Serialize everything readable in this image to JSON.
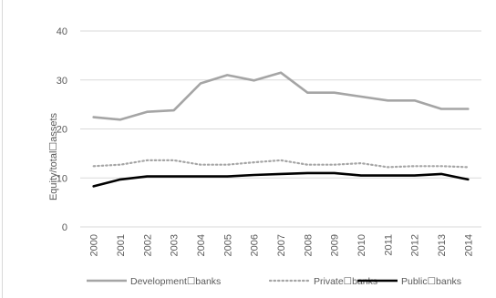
{
  "chart_data": {
    "type": "line",
    "title": "",
    "xlabel": "",
    "ylabel": "Equity/total☐assets",
    "ylim": [
      0,
      40
    ],
    "yticks": [
      0,
      10,
      20,
      30,
      40
    ],
    "grid": true,
    "legend_position": "bottom",
    "categories": [
      "2000",
      "2001",
      "2002",
      "2003",
      "2004",
      "2005",
      "2006",
      "2007",
      "2008",
      "2009",
      "2010",
      "2011",
      "2012",
      "2013",
      "2014"
    ],
    "series": [
      {
        "name": "Development☐banks",
        "color": "#a5a5a5",
        "style": "solid",
        "values": [
          22.4,
          21.9,
          23.5,
          23.8,
          29.3,
          31.0,
          29.9,
          31.5,
          27.4,
          27.4,
          26.6,
          25.8,
          25.8,
          24.1,
          24.1
        ]
      },
      {
        "name": "Private☐banks",
        "color": "#a5a5a5",
        "style": "dotted",
        "values": [
          12.4,
          12.7,
          13.6,
          13.6,
          12.7,
          12.7,
          13.2,
          13.6,
          12.7,
          12.7,
          13.0,
          12.2,
          12.4,
          12.4,
          12.2
        ]
      },
      {
        "name": "Public☐banks",
        "color": "#000000",
        "style": "solid",
        "values": [
          8.3,
          9.7,
          10.3,
          10.3,
          10.3,
          10.3,
          10.6,
          10.8,
          11.0,
          11.0,
          10.5,
          10.5,
          10.5,
          10.8,
          9.7
        ]
      }
    ]
  }
}
